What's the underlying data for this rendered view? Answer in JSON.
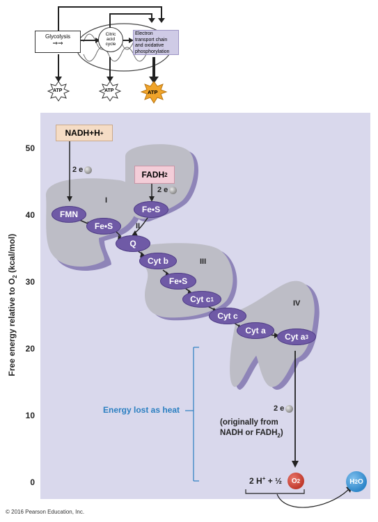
{
  "overview": {
    "glycolysis_label": "Glycolysis",
    "citric_label_line1": "Citric",
    "citric_label_line2": "acid",
    "citric_label_line3": "cycle",
    "etc_label_line1": "Electron",
    "etc_label_line2": "transport chain",
    "etc_label_line3": "and oxidative",
    "etc_label_line4": "phosphorylation",
    "atp_1": "ATP",
    "atp_2": "ATP",
    "atp_3": "ATP"
  },
  "axis": {
    "ylabel_prefix": "Free energy relative to O",
    "ylabel_sub": "2",
    "ylabel_suffix": " (kcal/mol)",
    "ticks": [
      "50",
      "40",
      "30",
      "20",
      "10",
      "0"
    ]
  },
  "complexes": {
    "I": "I",
    "II": "II",
    "III": "III",
    "IV": "IV"
  },
  "donors": {
    "nadh": "NADH+H",
    "nadh_sup": "+",
    "fadh2": "FADH",
    "fadh2_sub": "2"
  },
  "electrons": {
    "e1": "2 e",
    "e2": "2 e",
    "e3": "2 e"
  },
  "carriers": {
    "fmn": "FMN",
    "fes1": "Fe•S",
    "fes2": "Fe•S",
    "q": "Q",
    "cytb": "Cyt b",
    "fes3": "Fe•S",
    "cytc1": "Cyt c",
    "cytc1_sub": "1",
    "cytc": "Cyt c",
    "cyta": "Cyt a",
    "cyta3": "Cyt a",
    "cyta3_sub": "3"
  },
  "heat": {
    "label": "Energy lost as heat"
  },
  "origin_note": {
    "line1": "(originally from",
    "line2_prefix": "NADH or FADH",
    "line2_sub": "2",
    "line2_suffix": ")"
  },
  "equation": {
    "lhs": "2 H",
    "lhs_sup": "+",
    "plus": " + ",
    "half": "½",
    "o2": "O",
    "o2_sub": "2",
    "product": "H",
    "product_sub": "2",
    "product_o": "O"
  },
  "copyright": "© 2016 Pearson Education, Inc.",
  "colors": {
    "panel": "#d9d8ec",
    "complex_fill": "#bdbdc6",
    "complex_shadow": "#8e84b8",
    "carrier": "#6f5aa6",
    "nadh_box": "#f5dcc5",
    "fadh_box": "#f3cdd8",
    "heat_text": "#2b7fc1",
    "o2": "#c0392b",
    "h2o": "#2e86c9",
    "atp_top": "#f0a42a"
  }
}
